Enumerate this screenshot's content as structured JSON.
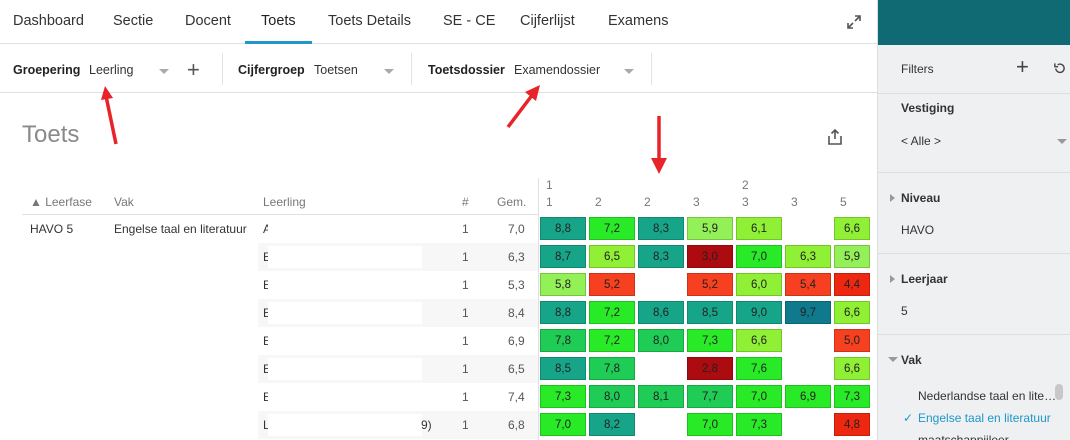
{
  "nav": {
    "tabs": [
      "Dashboard",
      "Sectie",
      "Docent",
      "Toets",
      "Toets Details",
      "SE - CE",
      "Cijferlijst",
      "Examens"
    ],
    "active_tab": "Toets"
  },
  "filters": {
    "groepering_label": "Groepering",
    "groepering_value": "Leerling",
    "cijfergroep_label": "Cijfergroep",
    "cijfergroep_value": "Toetsen",
    "toetsdossier_label": "Toetsdossier",
    "toetsdossier_value": "Examendossier"
  },
  "page_title": "Toets",
  "table": {
    "headers": {
      "leerfase": "▲ Leerfase",
      "vak": "Vak",
      "leerling": "Leerling",
      "count": "#",
      "gem": "Gem."
    },
    "grade_columns": [
      {
        "top": "1",
        "bottom": "1"
      },
      {
        "top": "",
        "bottom": "2"
      },
      {
        "top": "",
        "bottom": "2"
      },
      {
        "top": "",
        "bottom": "3"
      },
      {
        "top": "2",
        "bottom": "3"
      },
      {
        "top": "",
        "bottom": "3"
      },
      {
        "top": "",
        "bottom": "5"
      }
    ],
    "group": {
      "leerfase": "HAVO 5",
      "vak": "Engelse taal en literatuur"
    },
    "rows": [
      {
        "leerling": "A",
        "count": "1",
        "gem": "7,0",
        "grades": [
          "8,8",
          "7,2",
          "8,3",
          "5,9",
          "6,1",
          "",
          "6,6"
        ]
      },
      {
        "leerling": "E",
        "count": "1",
        "gem": "6,3",
        "grades": [
          "8,7",
          "6,5",
          "8,3",
          "3,0",
          "7,0",
          "6,3",
          "5,9"
        ]
      },
      {
        "leerling": "E",
        "count": "1",
        "gem": "5,3",
        "grades": [
          "5,8",
          "5,2",
          "",
          "5,2",
          "6,0",
          "5,4",
          "4,4"
        ]
      },
      {
        "leerling": "E",
        "count": "1",
        "gem": "8,4",
        "grades": [
          "8,8",
          "7,2",
          "8,6",
          "8,5",
          "9,0",
          "9,7",
          "6,6"
        ]
      },
      {
        "leerling": "E",
        "count": "1",
        "gem": "6,9",
        "grades": [
          "7,8",
          "7,2",
          "8,0",
          "7,3",
          "6,6",
          "",
          "5,0"
        ]
      },
      {
        "leerling": "E",
        "count": "1",
        "gem": "6,5",
        "grades": [
          "8,5",
          "7,8",
          "",
          "2,8",
          "7,6",
          "",
          "6,6"
        ]
      },
      {
        "leerling": "E",
        "count": "1",
        "gem": "7,4",
        "grades": [
          "7,3",
          "8,0",
          "8,1",
          "7,7",
          "7,0",
          "6,9",
          "7,3"
        ]
      },
      {
        "leerling": "L",
        "leerling_suffix": "9)",
        "count": "1",
        "gem": "6,8",
        "grades": [
          "7,0",
          "8,2",
          "",
          "7,0",
          "7,3",
          "",
          "4,8"
        ]
      }
    ]
  },
  "right_panel": {
    "filters_label": "Filters",
    "vestiging_label": "Vestiging",
    "vestiging_value": "< Alle >",
    "niveau_label": "Niveau",
    "niveau_value": "HAVO",
    "leerjaar_label": "Leerjaar",
    "leerjaar_value": "5",
    "vak_label": "Vak",
    "vak_options": [
      {
        "label": "Nederlandse taal en lite…",
        "selected": false
      },
      {
        "label": "Engelse taal en literatuur",
        "selected": true
      },
      {
        "label": "maatschappijleer",
        "selected": false
      }
    ]
  },
  "colors": {
    "accent": "#1f97c9",
    "header_teal": "#0f6a73",
    "grade_scale": {
      "9.5": "#0e7a8c",
      "8.2": "#17a58a",
      "7.7": "#1fcc55",
      "6.9": "#29ea27",
      "6.0": "#8ff035",
      "5.5": "#93f057",
      "5.0": "#f7401f",
      "4.0": "#ee2810",
      "0": "#ac0b10"
    }
  },
  "icons": [
    "expand-icon",
    "add-icon",
    "share-icon",
    "reset-icon",
    "caret-down-icon",
    "check-icon",
    "annotation-arrow"
  ]
}
